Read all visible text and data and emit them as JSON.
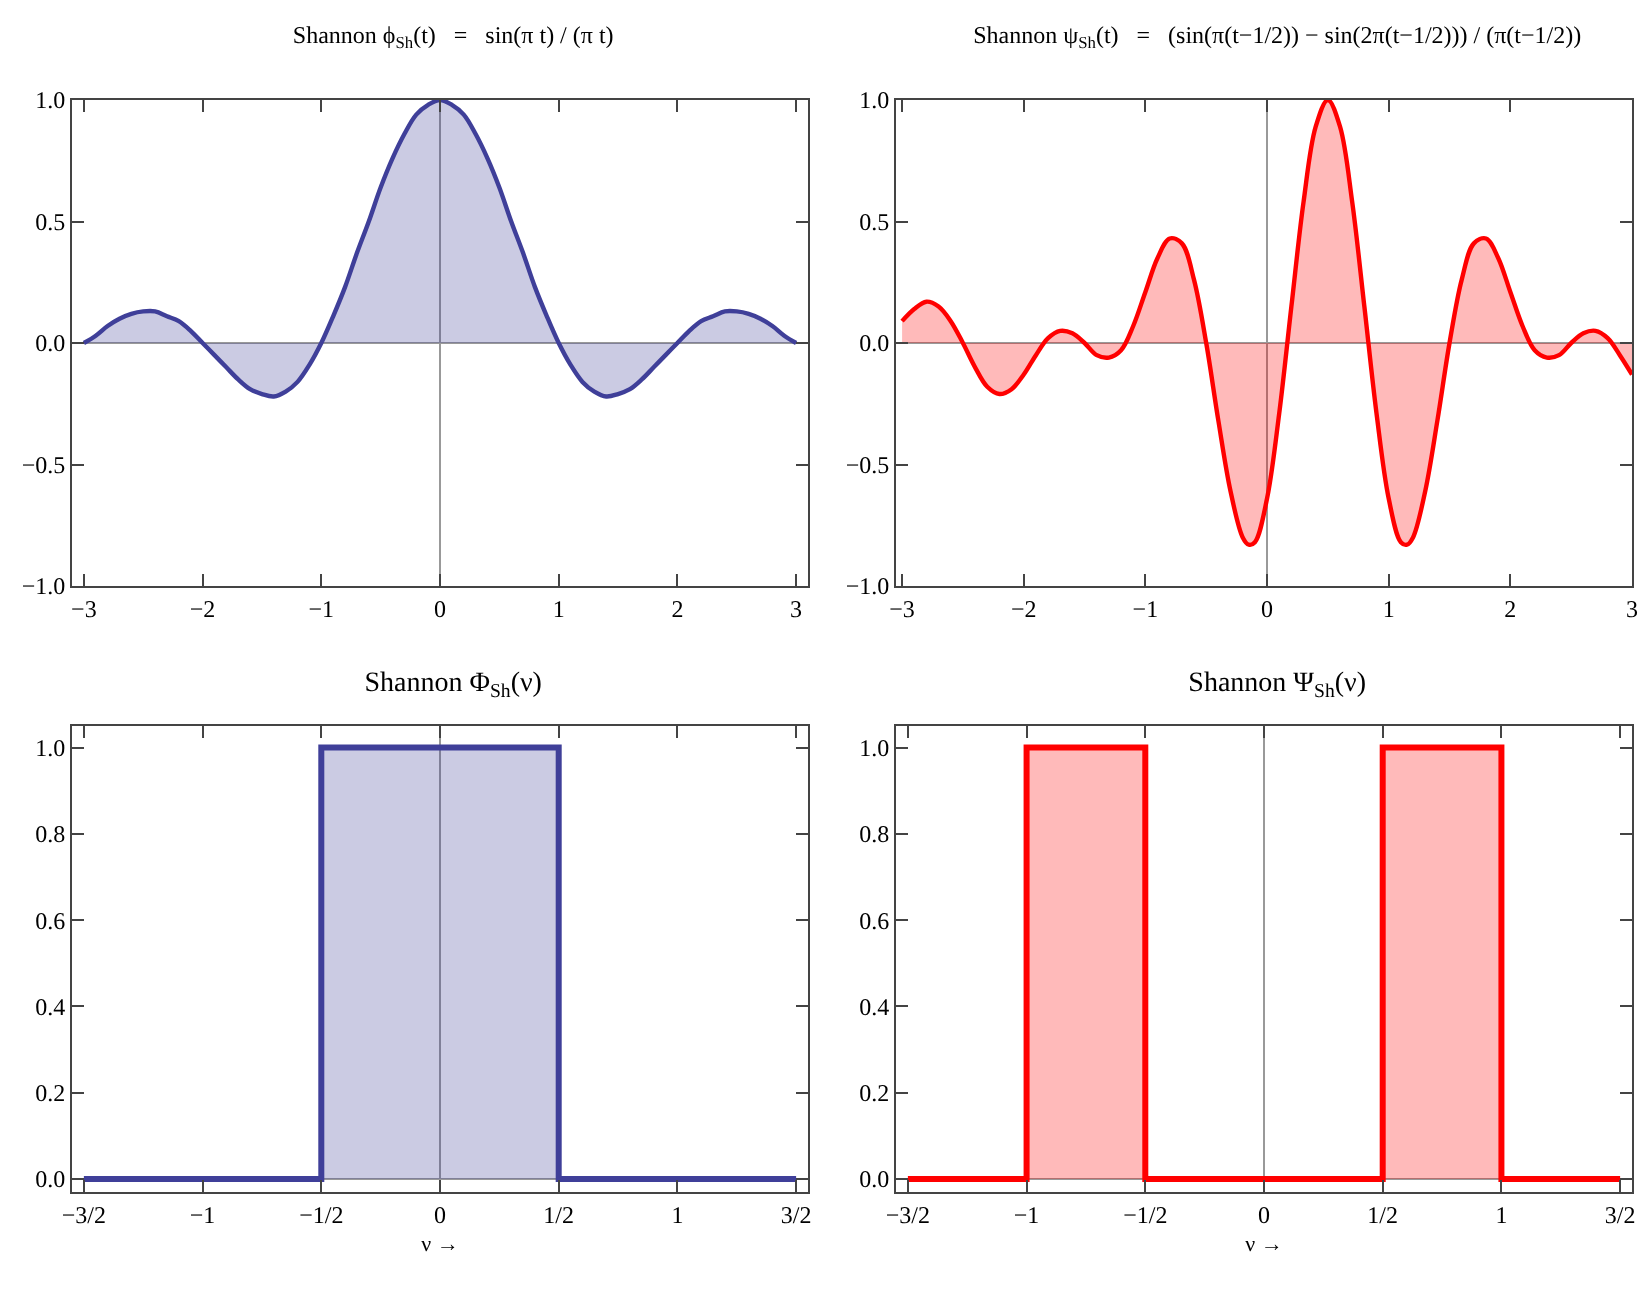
{
  "chart_data": [
    {
      "type": "area",
      "title": "Shannon ϕ$_{Sh}$(t)   =   sin(π t) / (π t)",
      "color": "#3f3f99",
      "x": [
        -3,
        -2.9,
        -2.8,
        -2.7,
        -2.6,
        -2.5,
        -2.4,
        -2.3,
        -2.2,
        -2.1,
        -2,
        -1.9,
        -1.8,
        -1.7,
        -1.6,
        -1.5,
        -1.4,
        -1.3,
        -1.2,
        -1.1,
        -1,
        -0.9,
        -0.8,
        -0.7,
        -0.6,
        -0.5,
        -0.4,
        -0.3,
        -0.2,
        -0.1,
        0,
        0.1,
        0.2,
        0.3,
        0.4,
        0.5,
        0.6,
        0.7,
        0.8,
        0.9,
        1,
        1.1,
        1.2,
        1.3,
        1.4,
        1.5,
        1.6,
        1.7,
        1.8,
        1.9,
        2,
        2.1,
        2.2,
        2.3,
        2.4,
        2.5,
        2.6,
        2.7,
        2.8,
        2.9,
        3
      ],
      "values": [
        0,
        0.03,
        0.07,
        0.1,
        0.12,
        0.13,
        0.13,
        0.11,
        0.09,
        0.05,
        0,
        -0.05,
        -0.1,
        -0.15,
        -0.19,
        -0.21,
        -0.22,
        -0.2,
        -0.16,
        -0.09,
        0,
        0.11,
        0.23,
        0.37,
        0.5,
        0.64,
        0.76,
        0.86,
        0.94,
        0.98,
        1,
        0.98,
        0.94,
        0.86,
        0.76,
        0.64,
        0.5,
        0.37,
        0.23,
        0.11,
        0,
        -0.09,
        -0.16,
        -0.2,
        -0.22,
        -0.21,
        -0.19,
        -0.15,
        -0.1,
        -0.05,
        0,
        0.05,
        0.09,
        0.11,
        0.13,
        0.13,
        0.12,
        0.1,
        0.07,
        0.03,
        0
      ],
      "xlim": [
        -3.1,
        3.1
      ],
      "ylim": [
        -1,
        1
      ],
      "xticks": [
        {
          "value": -3,
          "label": "−3"
        },
        {
          "value": -2,
          "label": "−2"
        },
        {
          "value": -1,
          "label": "−1"
        },
        0,
        1,
        2,
        3
      ],
      "yticks": [
        {
          "value": -1,
          "label": "−1.0"
        },
        {
          "value": -0.5,
          "label": "−0.5"
        },
        {
          "value": 0,
          "label": "0.0"
        },
        {
          "value": 0.5,
          "label": "0.5"
        },
        {
          "value": 1,
          "label": "1.0"
        }
      ]
    },
    {
      "type": "area",
      "title": "Shannon ψ$_{Sh}$(t)   =   (sin(π(t−1/2)) − sin(2π(t−1/2))) / (π(t−1/2))",
      "color": "#ff0000",
      "x": [
        -3,
        -2.9,
        -2.8,
        -2.7,
        -2.6,
        -2.5,
        -2.4,
        -2.3,
        -2.2,
        -2.1,
        -2,
        -1.9,
        -1.8,
        -1.7,
        -1.6,
        -1.5,
        -1.4,
        -1.3,
        -1.2,
        -1.1,
        -1,
        -0.9,
        -0.8,
        -0.7,
        -0.6,
        -0.5,
        -0.4,
        -0.3,
        -0.2,
        -0.15,
        -0.1,
        0,
        0.1,
        0.2,
        0.3,
        0.4,
        0.5,
        0.6,
        0.7,
        0.8,
        0.9,
        1,
        1.1,
        1.15,
        1.2,
        1.3,
        1.4,
        1.5,
        1.6,
        1.7,
        1.8,
        1.9,
        2,
        2.1,
        2.2,
        2.3,
        2.4,
        2.5,
        2.6,
        2.7,
        2.8,
        2.9,
        3
      ],
      "values": [
        0.09,
        0.14,
        0.17,
        0.15,
        0.09,
        0,
        -0.1,
        -0.18,
        -0.21,
        -0.19,
        -0.13,
        -0.05,
        0.02,
        0.05,
        0.04,
        0,
        -0.05,
        -0.06,
        -0.03,
        0.07,
        0.21,
        0.35,
        0.43,
        0.41,
        0.26,
        0,
        -0.32,
        -0.61,
        -0.8,
        -0.83,
        -0.82,
        -0.64,
        -0.29,
        0.15,
        0.58,
        0.89,
        1,
        0.89,
        0.58,
        0.15,
        -0.29,
        -0.64,
        -0.82,
        -0.83,
        -0.8,
        -0.61,
        -0.32,
        0,
        0.26,
        0.41,
        0.43,
        0.35,
        0.21,
        0.07,
        -0.03,
        -0.06,
        -0.05,
        0,
        0.04,
        0.05,
        0.02,
        -0.05,
        -0.13
      ],
      "xlim": [
        -3.05,
        3
      ],
      "ylim": [
        -1,
        1
      ],
      "xticks": [
        {
          "value": -3,
          "label": "−3"
        },
        {
          "value": -2,
          "label": "−2"
        },
        {
          "value": -1,
          "label": "−1"
        },
        0,
        1,
        2,
        3
      ],
      "yticks": [
        {
          "value": -1,
          "label": "−1.0"
        },
        {
          "value": -0.5,
          "label": "−0.5"
        },
        {
          "value": 0,
          "label": "0.0"
        },
        {
          "value": 0.5,
          "label": "0.5"
        },
        {
          "value": 1,
          "label": "1.0"
        }
      ]
    },
    {
      "type": "step",
      "title": "Shannon Φ$_{Sh}$(ν)",
      "xlabel": "ν →",
      "color": "#3f3f99",
      "x": [
        -1.5,
        -0.5,
        0.5,
        1.5
      ],
      "values": [
        0,
        1,
        0,
        0
      ],
      "xlim": [
        -1.55,
        1.55
      ],
      "ylim": [
        -0.03,
        1.05
      ],
      "xticks": [
        {
          "value": -1.5,
          "label": "−3/2"
        },
        {
          "value": -1,
          "label": "−1"
        },
        {
          "value": -0.5,
          "label": "−1/2"
        },
        0,
        {
          "value": 0.5,
          "label": "1/2"
        },
        1,
        {
          "value": 1.5,
          "label": "3/2"
        }
      ],
      "yticks": [
        {
          "value": 0,
          "label": "0.0"
        },
        {
          "value": 0.2,
          "label": "0.2"
        },
        {
          "value": 0.4,
          "label": "0.4"
        },
        {
          "value": 0.6,
          "label": "0.6"
        },
        {
          "value": 0.8,
          "label": "0.8"
        },
        {
          "value": 1,
          "label": "1.0"
        }
      ]
    },
    {
      "type": "step",
      "title": "Shannon Ψ$_{Sh}$(ν)",
      "xlabel": "ν →",
      "color": "#ff0000",
      "x": [
        -1.5,
        -1,
        -0.5,
        0.5,
        1,
        1.5
      ],
      "values": [
        0,
        1,
        0,
        1,
        0,
        0
      ],
      "xlim": [
        -1.55,
        1.55
      ],
      "ylim": [
        -0.03,
        1.05
      ],
      "xticks": [
        {
          "value": -1.5,
          "label": "−3/2"
        },
        {
          "value": -1,
          "label": "−1"
        },
        {
          "value": -0.5,
          "label": "−1/2"
        },
        0,
        {
          "value": 0.5,
          "label": "1/2"
        },
        1,
        {
          "value": 1.5,
          "label": "3/2"
        }
      ],
      "yticks": [
        {
          "value": 0,
          "label": "0.0"
        },
        {
          "value": 0.2,
          "label": "0.2"
        },
        {
          "value": 0.4,
          "label": "0.4"
        },
        {
          "value": 0.6,
          "label": "0.6"
        },
        {
          "value": 0.8,
          "label": "0.8"
        },
        {
          "value": 1,
          "label": "1.0"
        }
      ]
    }
  ]
}
